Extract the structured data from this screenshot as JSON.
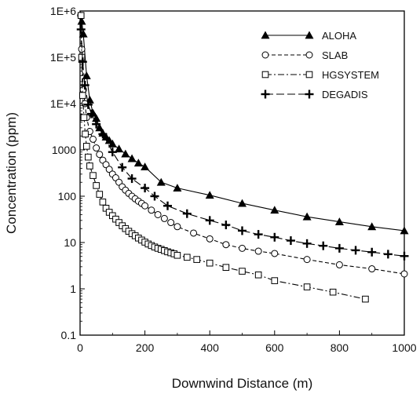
{
  "chart_data": {
    "type": "line",
    "xlabel": "Downwind Distance (m)",
    "ylabel": "Concentration (ppm)",
    "xlim": [
      0,
      1000
    ],
    "ylim": [
      0.1,
      1000000
    ],
    "yscale": "log",
    "grid": false,
    "legend_position": "top-right",
    "x_ticks": [
      "0",
      "200",
      "400",
      "600",
      "800",
      "1000"
    ],
    "y_ticks": [
      {
        "value": 1000000,
        "label": "1E+6"
      },
      {
        "value": 100000,
        "label": "1E+5"
      },
      {
        "value": 10000,
        "label": "1E+4"
      },
      {
        "value": 1000,
        "label": "1000"
      },
      {
        "value": 100,
        "label": "100"
      },
      {
        "value": 10,
        "label": "10"
      },
      {
        "value": 1,
        "label": "1"
      },
      {
        "value": 0.1,
        "label": "0.1"
      }
    ],
    "series": [
      {
        "name": "ALOHA",
        "marker": "triangle",
        "dash": "solid",
        "points": [
          [
            5,
            600000
          ],
          [
            10,
            320000
          ],
          [
            20,
            40000
          ],
          [
            30,
            12000
          ],
          [
            40,
            6200
          ],
          [
            50,
            4800
          ],
          [
            60,
            3000
          ],
          [
            70,
            2300
          ],
          [
            80,
            1900
          ],
          [
            90,
            1600
          ],
          [
            100,
            1350
          ],
          [
            120,
            1050
          ],
          [
            140,
            820
          ],
          [
            160,
            650
          ],
          [
            180,
            520
          ],
          [
            200,
            430
          ],
          [
            250,
            200
          ],
          [
            300,
            150
          ],
          [
            400,
            105
          ],
          [
            500,
            70
          ],
          [
            600,
            50
          ],
          [
            700,
            36
          ],
          [
            800,
            28
          ],
          [
            900,
            22
          ],
          [
            1000,
            18
          ]
        ]
      },
      {
        "name": "SLAB",
        "marker": "circle",
        "dash": "dashed",
        "points": [
          [
            2,
            800000
          ],
          [
            5,
            150000
          ],
          [
            10,
            20000
          ],
          [
            15,
            10000
          ],
          [
            20,
            5000
          ],
          [
            30,
            2500
          ],
          [
            40,
            1700
          ],
          [
            50,
            1100
          ],
          [
            60,
            800
          ],
          [
            70,
            600
          ],
          [
            80,
            480
          ],
          [
            90,
            380
          ],
          [
            100,
            300
          ],
          [
            110,
            250
          ],
          [
            120,
            200
          ],
          [
            130,
            160
          ],
          [
            140,
            135
          ],
          [
            150,
            115
          ],
          [
            160,
            100
          ],
          [
            170,
            88
          ],
          [
            180,
            78
          ],
          [
            190,
            70
          ],
          [
            200,
            62
          ],
          [
            220,
            50
          ],
          [
            240,
            40
          ],
          [
            260,
            33
          ],
          [
            280,
            27
          ],
          [
            300,
            22
          ],
          [
            350,
            16
          ],
          [
            400,
            12
          ],
          [
            450,
            9
          ],
          [
            500,
            7.5
          ],
          [
            550,
            6.5
          ],
          [
            600,
            5.8
          ],
          [
            700,
            4.3
          ],
          [
            800,
            3.3
          ],
          [
            900,
            2.7
          ],
          [
            1000,
            2.1
          ]
        ]
      },
      {
        "name": "HGSYSTEM",
        "marker": "square",
        "dash": "dashdot",
        "points": [
          [
            3,
            800000
          ],
          [
            5,
            100000
          ],
          [
            8,
            15000
          ],
          [
            12,
            5000
          ],
          [
            16,
            2200
          ],
          [
            20,
            1200
          ],
          [
            25,
            700
          ],
          [
            30,
            450
          ],
          [
            40,
            280
          ],
          [
            50,
            170
          ],
          [
            60,
            110
          ],
          [
            70,
            75
          ],
          [
            80,
            55
          ],
          [
            90,
            45
          ],
          [
            100,
            38
          ],
          [
            110,
            32
          ],
          [
            120,
            27
          ],
          [
            130,
            23
          ],
          [
            140,
            20
          ],
          [
            150,
            17.5
          ],
          [
            160,
            15.5
          ],
          [
            170,
            14
          ],
          [
            180,
            12.5
          ],
          [
            190,
            11.3
          ],
          [
            200,
            10.2
          ],
          [
            210,
            9.3
          ],
          [
            220,
            8.6
          ],
          [
            230,
            8.0
          ],
          [
            240,
            7.5
          ],
          [
            250,
            7.1
          ],
          [
            260,
            6.7
          ],
          [
            270,
            6.3
          ],
          [
            280,
            6.0
          ],
          [
            290,
            5.7
          ],
          [
            300,
            5.3
          ],
          [
            330,
            4.8
          ],
          [
            360,
            4.3
          ],
          [
            400,
            3.6
          ],
          [
            450,
            2.9
          ],
          [
            500,
            2.4
          ],
          [
            550,
            2.0
          ],
          [
            600,
            1.5
          ],
          [
            700,
            1.1
          ],
          [
            780,
            0.85
          ],
          [
            880,
            0.6
          ]
        ]
      },
      {
        "name": "DEGADIS",
        "marker": "plus",
        "dash": "longdash",
        "points": [
          [
            3,
            400000
          ],
          [
            8,
            80000
          ],
          [
            15,
            25000
          ],
          [
            25,
            9500
          ],
          [
            35,
            6000
          ],
          [
            50,
            3600
          ],
          [
            70,
            2200
          ],
          [
            100,
            900
          ],
          [
            130,
            420
          ],
          [
            160,
            240
          ],
          [
            200,
            150
          ],
          [
            230,
            100
          ],
          [
            270,
            62
          ],
          [
            330,
            42
          ],
          [
            400,
            30
          ],
          [
            450,
            24
          ],
          [
            500,
            18
          ],
          [
            550,
            15
          ],
          [
            600,
            13
          ],
          [
            650,
            11
          ],
          [
            700,
            9.5
          ],
          [
            750,
            8.5
          ],
          [
            800,
            7.5
          ],
          [
            850,
            6.8
          ],
          [
            900,
            6.2
          ],
          [
            950,
            5.6
          ],
          [
            1000,
            5.1
          ]
        ]
      }
    ]
  }
}
